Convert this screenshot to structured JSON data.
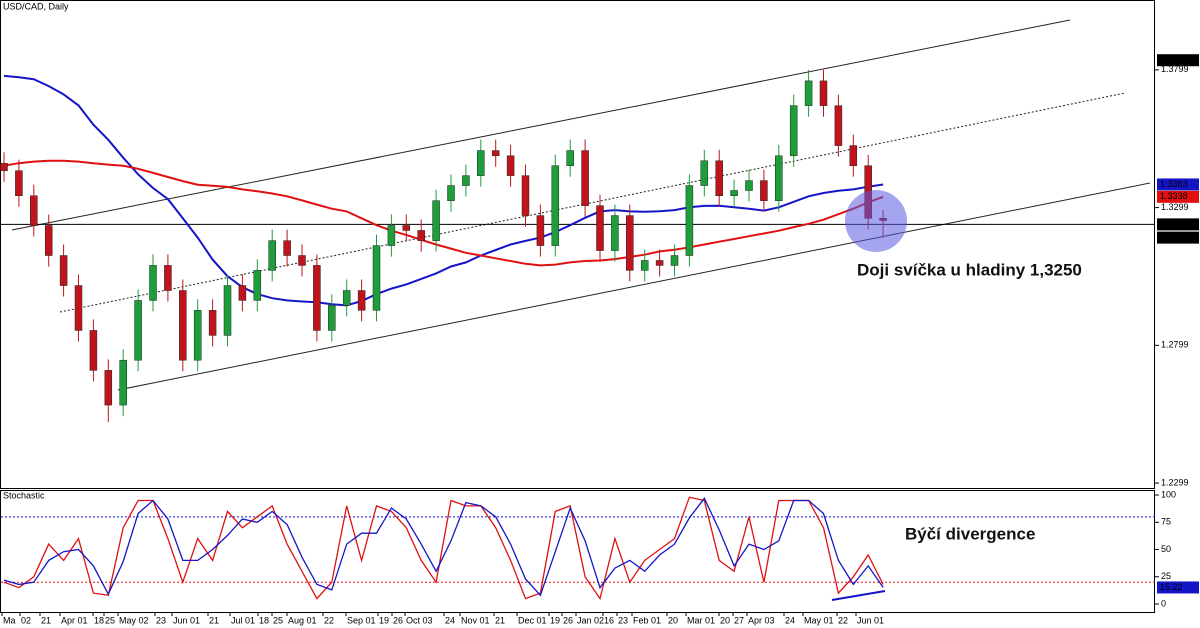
{
  "chart_data": [
    {
      "type": "candlestick",
      "title": "USD/CAD, Daily",
      "annotation": "Doji svíčka u hladiny 1,3250",
      "xtick_labels": [
        "Ma",
        "02",
        "21",
        "Apr 01",
        "18",
        "25",
        "May 02",
        "23",
        "Jun 01",
        "21",
        "Jul 01",
        "18",
        "25",
        "Aug 01",
        "22",
        "Sep 01",
        "19",
        "26",
        "Oct 03",
        "24",
        "Nov 01",
        "21",
        "Dec 01",
        "19",
        "26",
        "Jan 02",
        "16",
        "23",
        "Feb 01",
        "20",
        "Mar 01",
        "20",
        "27",
        "Apr 03",
        "24",
        "May 01",
        "22",
        "Jun 01"
      ],
      "open": [
        1.346,
        1.3433,
        1.3342,
        1.3234,
        1.3125,
        1.3016,
        1.2853,
        1.2708,
        1.2582,
        1.2745,
        1.2962,
        1.3089,
        1.2998,
        1.2745,
        1.2926,
        1.2835,
        1.3016,
        1.2962,
        1.3071,
        1.3179,
        1.3125,
        1.3089,
        1.2853,
        1.2944,
        1.2998,
        1.2926,
        1.3161,
        1.3234,
        1.3216,
        1.3179,
        1.3324,
        1.3379,
        1.3415,
        1.3506,
        1.3487,
        1.3415,
        1.327,
        1.3161,
        1.3451,
        1.3506,
        1.3306,
        1.3143,
        1.327,
        1.3071,
        1.3107,
        1.3089,
        1.3125,
        1.3379,
        1.3469,
        1.3342,
        1.3361,
        1.3397,
        1.3324,
        1.3487,
        1.3669,
        1.3759,
        1.3669,
        1.3524,
        1.3451,
        1.326
      ],
      "high": [
        1.35,
        1.3473,
        1.3382,
        1.3274,
        1.3165,
        1.3056,
        1.2893,
        1.2748,
        1.2785,
        1.3002,
        1.3129,
        1.3129,
        1.3038,
        1.2966,
        1.2966,
        1.3056,
        1.3056,
        1.3111,
        1.3219,
        1.3219,
        1.3165,
        1.3129,
        1.2984,
        1.3038,
        1.3038,
        1.3201,
        1.3274,
        1.3274,
        1.3256,
        1.3364,
        1.3419,
        1.3455,
        1.3546,
        1.3546,
        1.3527,
        1.3455,
        1.331,
        1.3491,
        1.3546,
        1.3546,
        1.3346,
        1.331,
        1.331,
        1.3147,
        1.3147,
        1.3165,
        1.3419,
        1.3509,
        1.3509,
        1.3401,
        1.3437,
        1.3437,
        1.3527,
        1.3709,
        1.3799,
        1.3799,
        1.3709,
        1.3564,
        1.3491,
        1.329
      ],
      "low": [
        1.3393,
        1.3302,
        1.3194,
        1.3085,
        1.2976,
        1.2813,
        1.2668,
        1.252,
        1.2542,
        1.2705,
        1.2922,
        1.2958,
        1.2705,
        1.2705,
        1.2795,
        1.2795,
        1.2922,
        1.2922,
        1.3031,
        1.3085,
        1.3049,
        1.2813,
        1.2813,
        1.2904,
        1.2886,
        1.2886,
        1.3121,
        1.3176,
        1.3139,
        1.3139,
        1.3284,
        1.3339,
        1.3375,
        1.3447,
        1.3375,
        1.323,
        1.3121,
        1.3121,
        1.3411,
        1.3266,
        1.3103,
        1.3103,
        1.3031,
        1.3031,
        1.3049,
        1.3049,
        1.3085,
        1.3339,
        1.3302,
        1.3302,
        1.3321,
        1.3284,
        1.3284,
        1.3447,
        1.3629,
        1.3629,
        1.3484,
        1.3411,
        1.322,
        1.319
      ],
      "close": [
        1.3433,
        1.3342,
        1.3234,
        1.3125,
        1.3016,
        1.2853,
        1.2708,
        1.2582,
        1.2745,
        1.2962,
        1.3089,
        1.2998,
        1.2745,
        1.2926,
        1.2835,
        1.3016,
        1.2962,
        1.3071,
        1.3179,
        1.3125,
        1.3089,
        1.2853,
        1.2944,
        1.2998,
        1.2926,
        1.3161,
        1.3234,
        1.3216,
        1.3179,
        1.3324,
        1.3379,
        1.3415,
        1.3506,
        1.3487,
        1.3415,
        1.327,
        1.3161,
        1.3451,
        1.3506,
        1.3306,
        1.3143,
        1.327,
        1.3071,
        1.3107,
        1.3089,
        1.3125,
        1.3379,
        1.3469,
        1.3342,
        1.3361,
        1.3397,
        1.3324,
        1.3487,
        1.3669,
        1.3759,
        1.3669,
        1.3524,
        1.3451,
        1.326,
        1.3252
      ],
      "up_color": "#1e9e3a",
      "down_color": "#c0141c",
      "series": [
        {
          "color": "#1515c8",
          "values": [
            1.3777,
            1.3772,
            1.3765,
            1.374,
            1.371,
            1.367,
            1.36,
            1.3545,
            1.348,
            1.342,
            1.337,
            1.333,
            1.326,
            1.319,
            1.311,
            1.305,
            1.301,
            1.2985,
            1.297,
            1.2962,
            1.2958,
            1.2955,
            1.2948,
            1.2944,
            1.296,
            1.2985,
            1.3005,
            1.302,
            1.304,
            1.306,
            1.3085,
            1.31,
            1.3125,
            1.3145,
            1.3165,
            1.3178,
            1.319,
            1.321,
            1.3235,
            1.3262,
            1.3285,
            1.329,
            1.3285,
            1.3284,
            1.3286,
            1.329,
            1.33,
            1.3305,
            1.3306,
            1.33,
            1.3295,
            1.3288,
            1.33,
            1.332,
            1.334,
            1.3352,
            1.336,
            1.3365,
            1.3375,
            1.3383
          ]
        },
        {
          "color": "#e01010",
          "values": [
            1.3451,
            1.346,
            1.3466,
            1.3469,
            1.3469,
            1.3466,
            1.346,
            1.3455,
            1.3451,
            1.344,
            1.3425,
            1.341,
            1.3395,
            1.3382,
            1.3378,
            1.3374,
            1.3365,
            1.3358,
            1.335,
            1.334,
            1.3325,
            1.331,
            1.3295,
            1.3285,
            1.326,
            1.3235,
            1.3215,
            1.32,
            1.3182,
            1.3165,
            1.315,
            1.3135,
            1.3125,
            1.3115,
            1.3105,
            1.3095,
            1.3089,
            1.3092,
            1.31,
            1.3105,
            1.3107,
            1.3112,
            1.312,
            1.3128,
            1.314,
            1.3146,
            1.3155,
            1.3165,
            1.3175,
            1.3185,
            1.3195,
            1.3205,
            1.3215,
            1.3228,
            1.324,
            1.3255,
            1.3275,
            1.3295,
            1.3318,
            1.3338
          ]
        }
      ],
      "ylim": [
        1.2281,
        1.4049
      ],
      "yticks": [
        1.3799,
        1.3299,
        1.2799,
        1.2299
      ],
      "price_markers": [
        {
          "value": 1.3834,
          "color": "#000000"
        },
        {
          "value": 1.3383,
          "color": "#1515c8"
        },
        {
          "value": 1.3338,
          "color": "#e01010"
        },
        {
          "value": 1.3238,
          "color": "#000000"
        },
        {
          "value": 1.319,
          "color": "#000000"
        }
      ]
    },
    {
      "type": "oscillator",
      "title": "Stochastic",
      "annotation": "Býčí divergence",
      "series": [
        {
          "color": "#e01010",
          "values": [
            20,
            15,
            25,
            55,
            40,
            60,
            10,
            8,
            70,
            95,
            95,
            60,
            20,
            60,
            40,
            85,
            70,
            80,
            90,
            55,
            30,
            5,
            20,
            90,
            40,
            90,
            85,
            70,
            40,
            20,
            95,
            90,
            90,
            70,
            40,
            5,
            10,
            85,
            90,
            25,
            5,
            60,
            20,
            40,
            50,
            60,
            98,
            95,
            40,
            30,
            80,
            20,
            95,
            95,
            95,
            70,
            10,
            25,
            45,
            18
          ]
        },
        {
          "color": "#1515c8",
          "values": [
            22,
            18,
            20,
            40,
            48,
            50,
            35,
            9,
            39,
            83,
            95,
            78,
            40,
            40,
            50,
            63,
            78,
            75,
            85,
            73,
            43,
            18,
            13,
            55,
            65,
            65,
            88,
            78,
            55,
            30,
            58,
            93,
            90,
            80,
            55,
            23,
            8,
            48,
            88,
            58,
            15,
            33,
            40,
            30,
            45,
            55,
            79,
            97,
            68,
            35,
            55,
            50,
            58,
            95,
            95,
            83,
            40,
            18,
            35,
            15.22
          ]
        }
      ],
      "levels": [
        {
          "value": 80,
          "color": "#1515c8"
        },
        {
          "value": 20,
          "color": "#e01010"
        }
      ],
      "ylim": [
        -7.3,
        104.6
      ],
      "yticks": [
        100,
        75,
        50,
        25,
        0
      ],
      "price_markers": [
        {
          "value": 15.22,
          "color": "#1515c8"
        }
      ]
    }
  ]
}
